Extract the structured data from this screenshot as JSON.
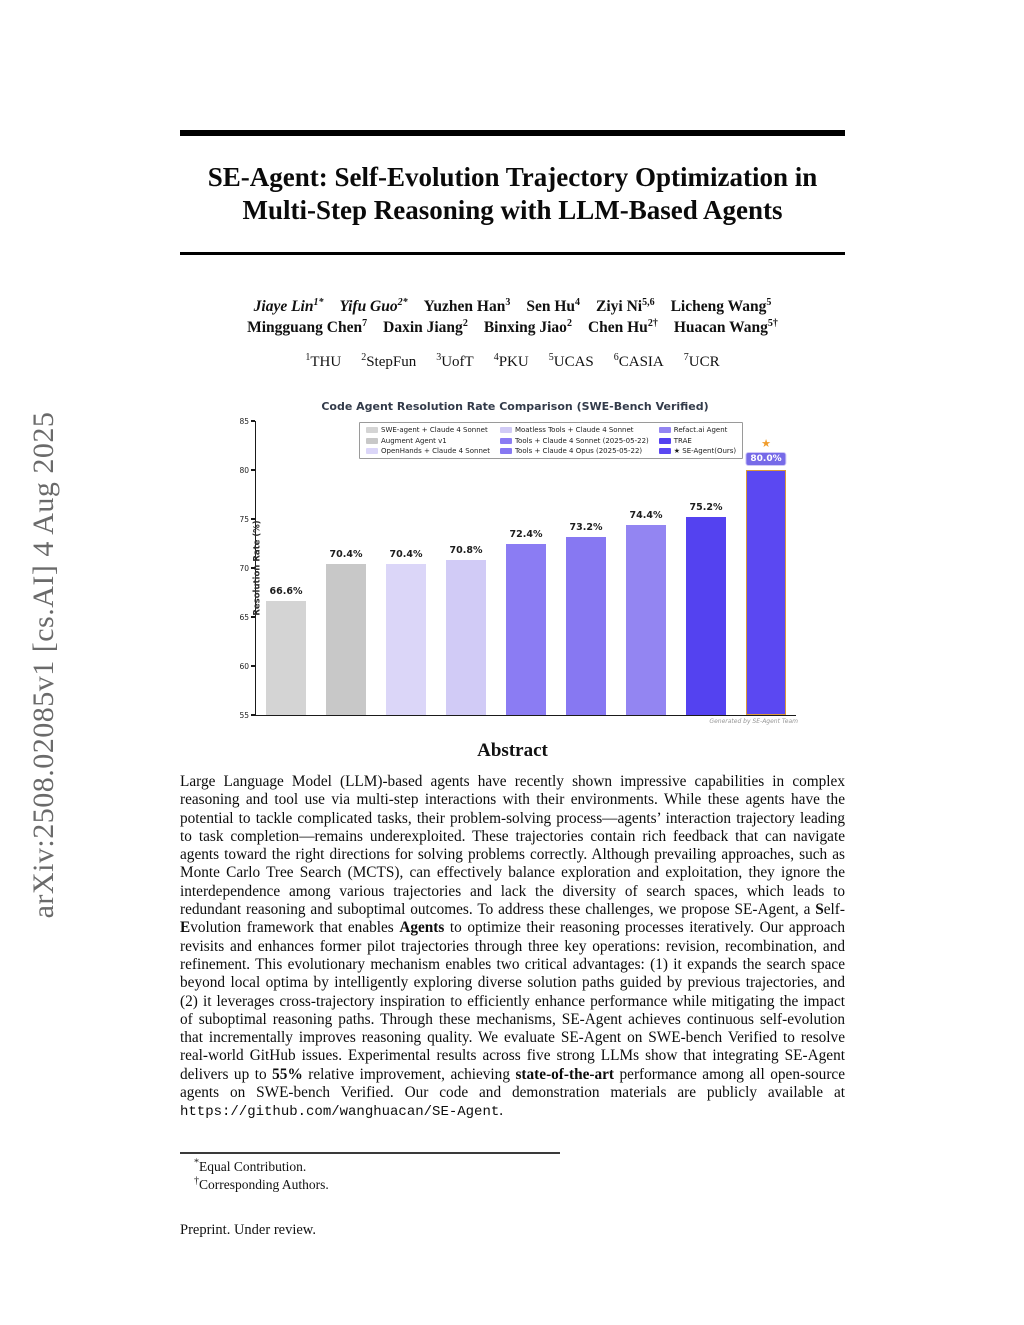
{
  "arxiv_label": "arXiv:2508.02085v1  [cs.AI]  4 Aug 2025",
  "title_lines": [
    "SE-Agent: Self-Evolution Trajectory Optimization in",
    "Multi-Step Reasoning with LLM-Based Agents"
  ],
  "author_rows": [
    [
      {
        "name": "Jiaye Lin",
        "sup": "1*",
        "italic": true
      },
      {
        "name": "Yifu Guo",
        "sup": "2*",
        "italic": true
      },
      {
        "name": "Yuzhen Han",
        "sup": "3",
        "italic": false
      },
      {
        "name": "Sen Hu",
        "sup": "4",
        "italic": false
      },
      {
        "name": "Ziyi Ni",
        "sup": "5,6",
        "italic": false
      },
      {
        "name": "Licheng Wang",
        "sup": "5",
        "italic": false
      }
    ],
    [
      {
        "name": "Mingguang Chen",
        "sup": "7",
        "italic": false
      },
      {
        "name": "Daxin Jiang",
        "sup": "2",
        "italic": false
      },
      {
        "name": "Binxing Jiao",
        "sup": "2",
        "italic": false
      },
      {
        "name": "Chen Hu",
        "sup": "2†",
        "italic": false
      },
      {
        "name": "Huacan Wang",
        "sup": "5†",
        "italic": false
      }
    ]
  ],
  "affiliations": [
    {
      "sup": "1",
      "name": "THU"
    },
    {
      "sup": "2",
      "name": "StepFun"
    },
    {
      "sup": "3",
      "name": "UofT"
    },
    {
      "sup": "4",
      "name": "PKU"
    },
    {
      "sup": "5",
      "name": "UCAS"
    },
    {
      "sup": "6",
      "name": "CASIA"
    },
    {
      "sup": "7",
      "name": "UCR"
    }
  ],
  "chart_data": {
    "type": "bar",
    "title": "Code Agent Resolution Rate Comparison (SWE-Bench Verified)",
    "ylabel": "Resolution Rate (%)",
    "ylim": [
      55,
      85
    ],
    "yticks": [
      55,
      60,
      65,
      70,
      75,
      80,
      85
    ],
    "grid": false,
    "legend_position": "top-center",
    "watermark": "Generated by SE-Agent Team",
    "series": [
      {
        "name": "SWE-agent + Claude 4 Sonnet",
        "value": 66.6,
        "color": "#d4d4d4"
      },
      {
        "name": "Augment Agent v1",
        "value": 70.4,
        "color": "#c8c8c8"
      },
      {
        "name": "OpenHands + Claude 4 Sonnet",
        "value": 70.4,
        "color": "#dbd6f8"
      },
      {
        "name": "Moatless Tools + Claude 4 Sonnet",
        "value": 70.8,
        "color": "#d1cbf6"
      },
      {
        "name": "Tools + Claude 4 Sonnet (2025-05-22)",
        "value": 72.4,
        "color": "#8b7cf3"
      },
      {
        "name": "Tools + Claude 4 Opus (2025-05-22)",
        "value": 73.2,
        "color": "#8778f2"
      },
      {
        "name": "Refact.ai Agent",
        "value": 74.4,
        "color": "#9385f2"
      },
      {
        "name": "TRAE",
        "value": 75.2,
        "color": "#5442f0"
      },
      {
        "name": "★ SE-Agent(Ours)",
        "value": 80.0,
        "color": "#5b48f2",
        "highlight": true
      }
    ],
    "highlight": {
      "star_color": "#f09c2c",
      "border_color": "#d9983b",
      "badge_bg": "#766ae8"
    }
  },
  "abstract": {
    "heading": "Abstract",
    "segments": [
      {
        "t": "Large Language Model (LLM)-based agents have recently shown impressive capabilities in complex reasoning and tool use via multi-step interactions with their environments. While these agents have the potential to tackle complicated tasks, their problem-solving process—agents’ interaction trajectory leading to task completion—remains underexploited. These trajectories contain rich feedback that can navigate agents toward the right directions for solving problems correctly. Although prevailing approaches, such as Monte Carlo Tree Search (MCTS), can effectively balance exploration and exploitation, they ignore the interdependence among various trajectories and lack the diversity of search spaces, which leads to redundant reasoning and suboptimal outcomes. To address these challenges, we propose SE-Agent, a ",
        "s": "n"
      },
      {
        "t": "S",
        "s": "b"
      },
      {
        "t": "elf-",
        "s": "n"
      },
      {
        "t": "E",
        "s": "b"
      },
      {
        "t": "volution framework that enables ",
        "s": "n"
      },
      {
        "t": "Agents",
        "s": "b"
      },
      {
        "t": " to optimize their reasoning processes iteratively. Our approach revisits and enhances former pilot trajectories through three key operations: revision, recombination, and refinement. This evolutionary mechanism enables two critical advantages: (1) it expands the search space beyond local optima by intelligently exploring diverse solution paths guided by previous trajectories, and (2) it leverages cross-trajectory inspiration to efficiently enhance performance while mitigating the impact of suboptimal reasoning paths. Through these mechanisms, SE-Agent achieves continuous self-evolution that incrementally improves reasoning quality. We evaluate SE-Agent on SWE-bench Verified to resolve real-world GitHub issues. Experimental results across five strong LLMs show that integrating SE-Agent delivers up to ",
        "s": "n"
      },
      {
        "t": "55%",
        "s": "b"
      },
      {
        "t": " relative improvement, achieving ",
        "s": "n"
      },
      {
        "t": "state-of-the-art",
        "s": "b"
      },
      {
        "t": " performance among all open-source agents on SWE-bench Verified. Our code and demonstration materials are publicly available at ",
        "s": "n"
      },
      {
        "t": "https://github.com/wanghuacan/SE-Agent",
        "s": "m"
      },
      {
        "t": ".",
        "s": "n"
      }
    ]
  },
  "footnotes": [
    {
      "marker": "*",
      "text": "Equal Contribution."
    },
    {
      "marker": "†",
      "text": "Corresponding Authors."
    }
  ],
  "footer": "Preprint. Under review."
}
